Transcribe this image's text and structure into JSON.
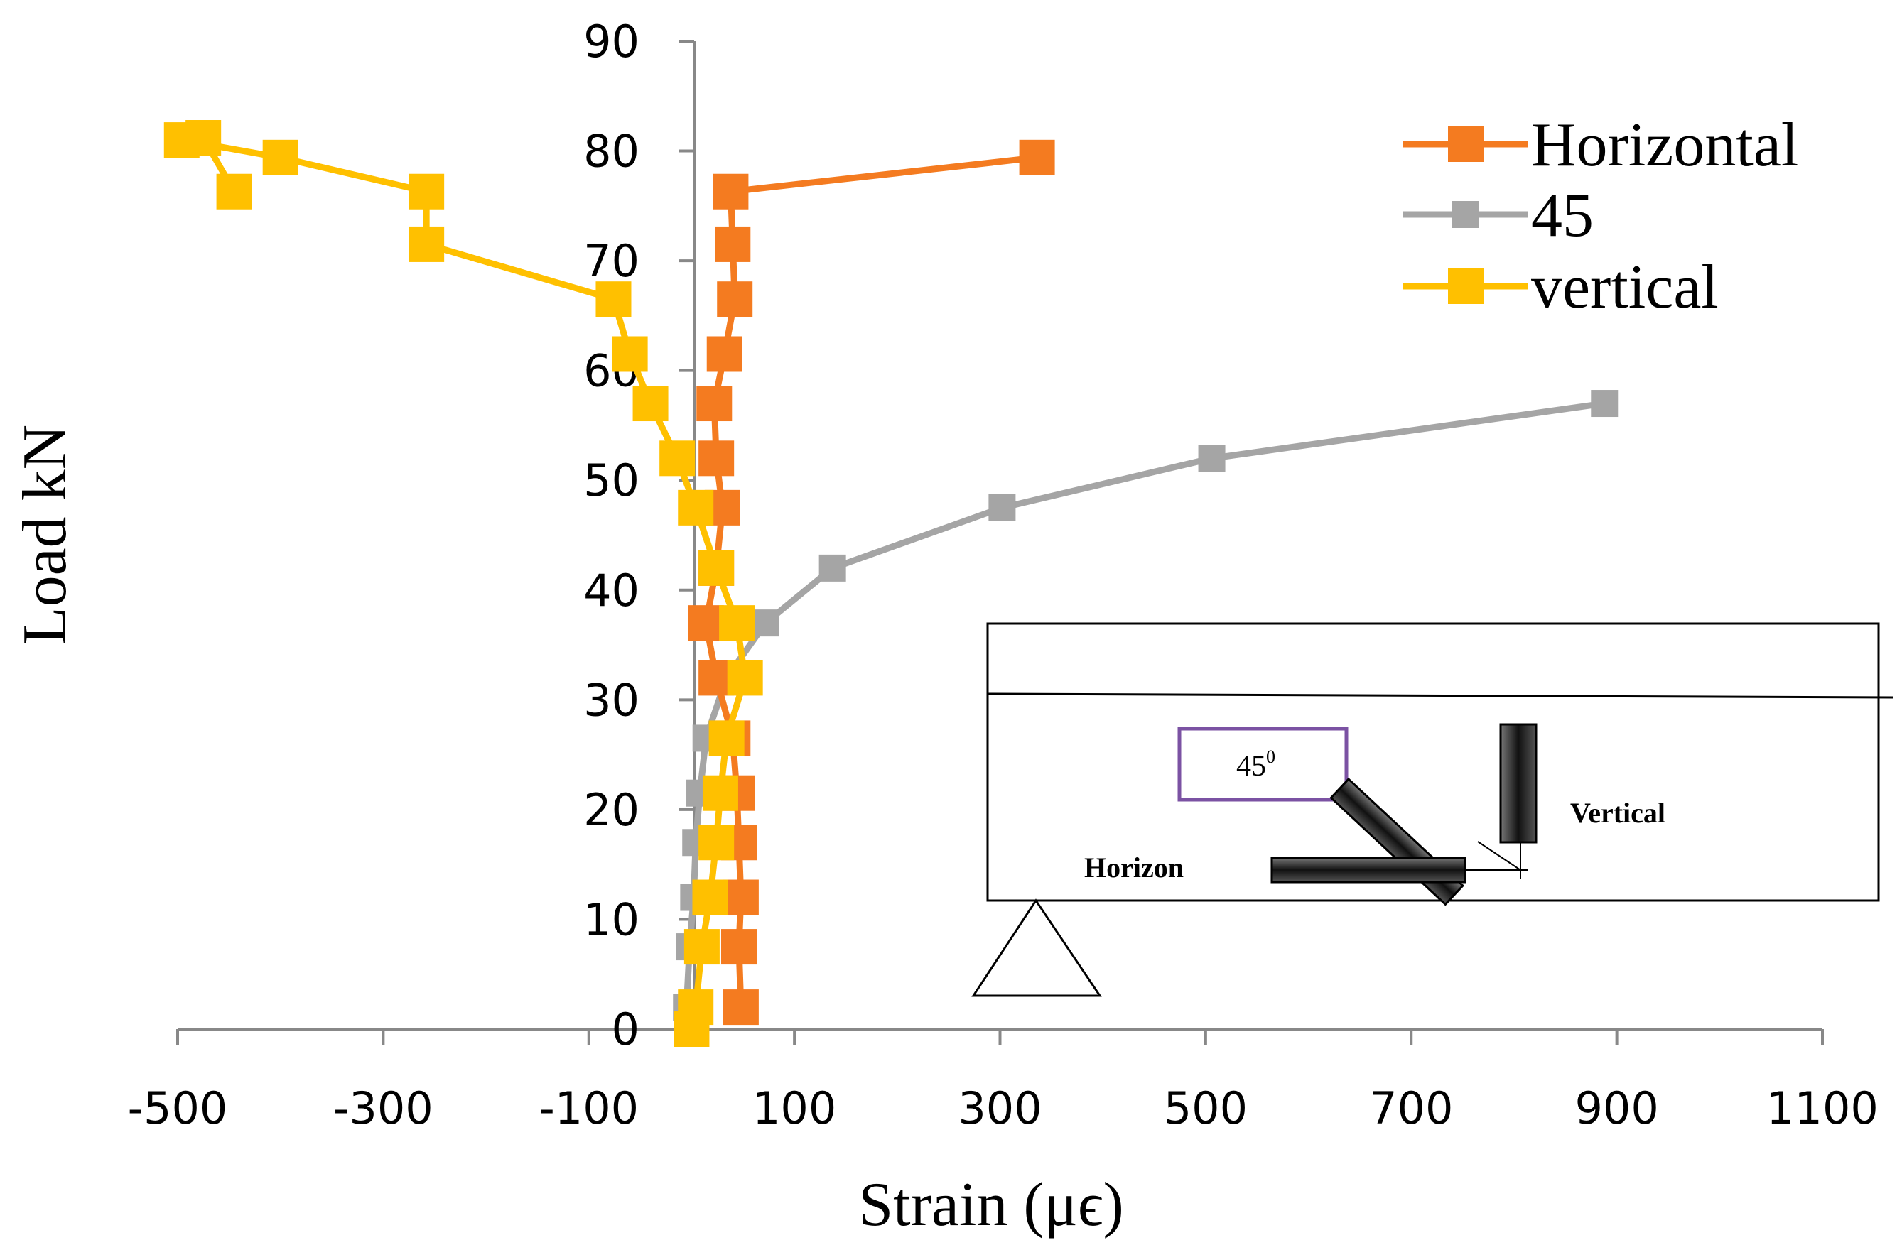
{
  "chart_data": {
    "type": "line",
    "title": "",
    "xlabel": "Strain (μϵ)",
    "ylabel": "Load kN",
    "xlim": [
      -500,
      1100
    ],
    "ylim": [
      0,
      90
    ],
    "x_ticks": [
      -500,
      -300,
      -100,
      100,
      300,
      500,
      700,
      900,
      1100
    ],
    "y_ticks": [
      0,
      10,
      20,
      30,
      40,
      50,
      60,
      70,
      80,
      90
    ],
    "x_tick_labels": [
      "-500",
      "-300",
      "-100",
      "100",
      "300",
      "500",
      "700",
      "900",
      "1100"
    ],
    "y_tick_labels": [
      "0",
      "10",
      "20",
      "30",
      "40",
      "50",
      "60",
      "70",
      "80",
      "90"
    ],
    "grid": false,
    "legend_position": "top-right",
    "series": [
      {
        "name": "Horizontal",
        "color": "#F47B20",
        "marker": "square-large",
        "points": [
          {
            "x": 48,
            "y": 2
          },
          {
            "x": 46,
            "y": 7.5
          },
          {
            "x": 48,
            "y": 12
          },
          {
            "x": 46,
            "y": 17
          },
          {
            "x": 44,
            "y": 21.5
          },
          {
            "x": 40,
            "y": 26.5
          },
          {
            "x": 24,
            "y": 32
          },
          {
            "x": 14,
            "y": 37
          },
          {
            "x": 24,
            "y": 42
          },
          {
            "x": 30,
            "y": 47.5
          },
          {
            "x": 24,
            "y": 52
          },
          {
            "x": 22,
            "y": 57
          },
          {
            "x": 32,
            "y": 61.5
          },
          {
            "x": 42,
            "y": 66.5
          },
          {
            "x": 40,
            "y": 71.5
          },
          {
            "x": 38,
            "y": 76.3
          },
          {
            "x": 336,
            "y": 79.4
          }
        ]
      },
      {
        "name": "45",
        "color": "#A5A5A5",
        "marker": "square-small",
        "points": [
          {
            "x": -5,
            "y": 2
          },
          {
            "x": -2,
            "y": 7.5
          },
          {
            "x": 2,
            "y": 12
          },
          {
            "x": 4,
            "y": 17
          },
          {
            "x": 8,
            "y": 21.5
          },
          {
            "x": 14,
            "y": 26.5
          },
          {
            "x": 34,
            "y": 32
          },
          {
            "x": 72,
            "y": 37
          },
          {
            "x": 137,
            "y": 42
          },
          {
            "x": 302,
            "y": 47.5
          },
          {
            "x": 506,
            "y": 52
          },
          {
            "x": 888,
            "y": 57
          }
        ]
      },
      {
        "name": "vertical",
        "color": "#FFC000",
        "marker": "square-large",
        "points": [
          {
            "x": 0,
            "y": 0
          },
          {
            "x": 4,
            "y": 2
          },
          {
            "x": 10,
            "y": 7.5
          },
          {
            "x": 18,
            "y": 12
          },
          {
            "x": 24,
            "y": 17
          },
          {
            "x": 28,
            "y": 21.5
          },
          {
            "x": 34,
            "y": 26.5
          },
          {
            "x": 52,
            "y": 32
          },
          {
            "x": 44,
            "y": 37
          },
          {
            "x": 24,
            "y": 42
          },
          {
            "x": 4,
            "y": 47.5
          },
          {
            "x": -14,
            "y": 52
          },
          {
            "x": -40,
            "y": 57
          },
          {
            "x": -60,
            "y": 61.5
          },
          {
            "x": -76,
            "y": 66.5
          },
          {
            "x": -258,
            "y": 71.5
          },
          {
            "x": -258,
            "y": 76.3
          },
          {
            "x": -400,
            "y": 79.4
          },
          {
            "x": -496,
            "y": 81
          },
          {
            "x": -475,
            "y": 81.2
          },
          {
            "x": -445,
            "y": 76.3
          }
        ]
      }
    ],
    "inset": {
      "box_label": "45",
      "box_label_superscript": "0",
      "vertical_label": "Vertical",
      "horizontal_label": "Horizon"
    }
  }
}
